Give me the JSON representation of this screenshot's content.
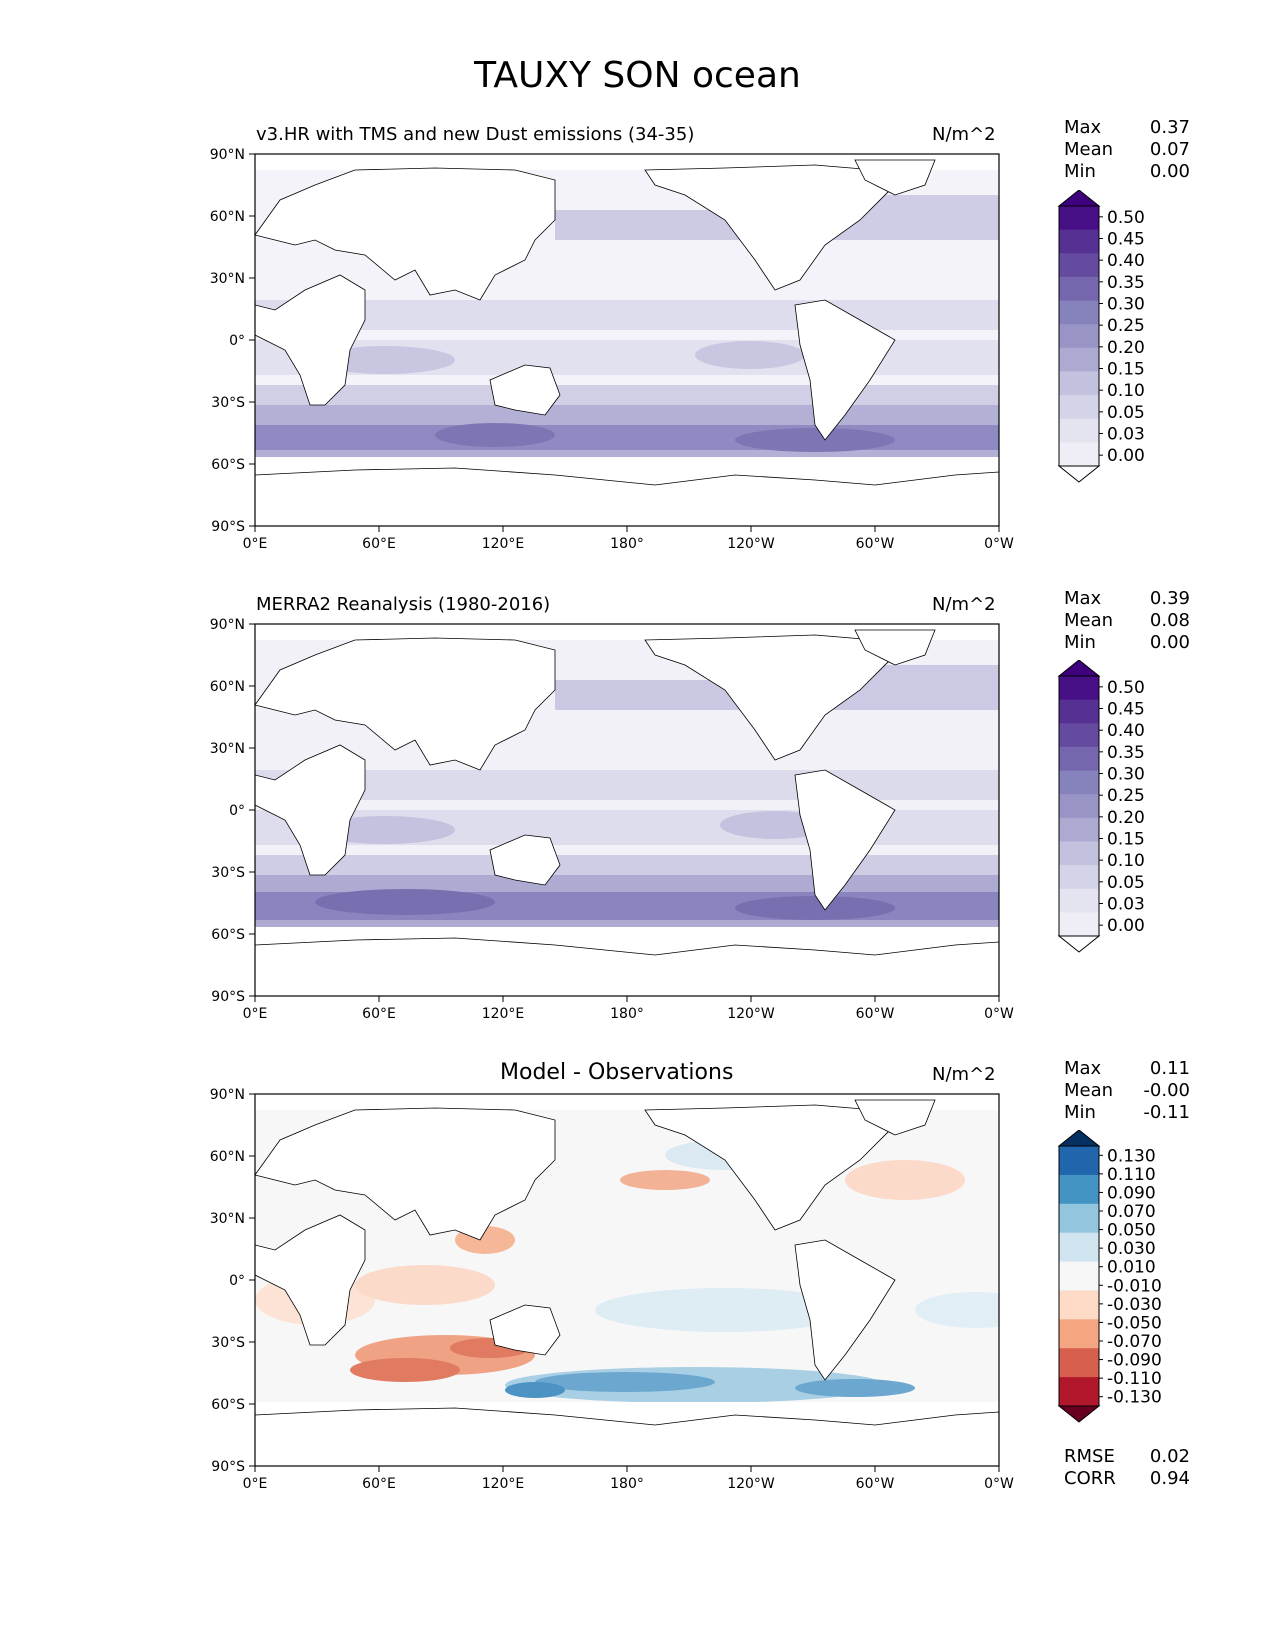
{
  "title": "TAUXY SON ocean",
  "axes": {
    "lat_labels": [
      "90°N",
      "60°N",
      "30°N",
      "0°",
      "30°S",
      "60°S",
      "90°S"
    ],
    "lon_labels": [
      "0°E",
      "60°E",
      "120°E",
      "180°",
      "120°W",
      "60°W",
      "0°W"
    ]
  },
  "colors": {
    "purples": [
      "#fcfbfd",
      "#efedf5",
      "#e4e3f0",
      "#d4d4e8",
      "#c2c1de",
      "#acaad1",
      "#9894c5",
      "#8682bc",
      "#7566ae",
      "#654b9f",
      "#563093",
      "#460f86",
      "#3f007d"
    ],
    "diverging": [
      "#67001f",
      "#b2182b",
      "#d6604d",
      "#f4a582",
      "#fddbc7",
      "#f7f7f7",
      "#d1e5f0",
      "#92c5de",
      "#4393c3",
      "#2166ac",
      "#053061"
    ]
  },
  "panels": [
    {
      "id": "model",
      "title": "v3.HR with TMS and new Dust emissions (34-35)",
      "units": "N/m^2",
      "stats": {
        "max_label": "Max",
        "max": "0.37",
        "mean_label": "Mean",
        "mean": "0.07",
        "min_label": "Min",
        "min": "0.00"
      },
      "colorbar": {
        "type": "sequential",
        "levels": [
          "0.50",
          "0.45",
          "0.40",
          "0.35",
          "0.30",
          "0.25",
          "0.20",
          "0.15",
          "0.10",
          "0.05",
          "0.03",
          "0.00"
        ]
      }
    },
    {
      "id": "obs",
      "title": "MERRA2 Reanalysis (1980-2016)",
      "units": "N/m^2",
      "stats": {
        "max_label": "Max",
        "max": "0.39",
        "mean_label": "Mean",
        "mean": "0.08",
        "min_label": "Min",
        "min": "0.00"
      },
      "colorbar": {
        "type": "sequential",
        "levels": [
          "0.50",
          "0.45",
          "0.40",
          "0.35",
          "0.30",
          "0.25",
          "0.20",
          "0.15",
          "0.10",
          "0.05",
          "0.03",
          "0.00"
        ]
      }
    },
    {
      "id": "diff",
      "title": "Model - Observations",
      "units": "N/m^2",
      "stats": {
        "max_label": "Max",
        "max": "0.11",
        "mean_label": "Mean",
        "mean": "-0.00",
        "min_label": "Min",
        "min": "-0.11"
      },
      "colorbar": {
        "type": "diverging",
        "levels": [
          "0.130",
          "0.110",
          "0.090",
          "0.070",
          "0.050",
          "0.030",
          "0.010",
          "-0.010",
          "-0.030",
          "-0.050",
          "-0.070",
          "-0.090",
          "-0.110",
          "-0.130"
        ]
      },
      "metrics": {
        "rmse_label": "RMSE",
        "rmse": "0.02",
        "corr_label": "CORR",
        "corr": "0.94"
      }
    }
  ]
}
